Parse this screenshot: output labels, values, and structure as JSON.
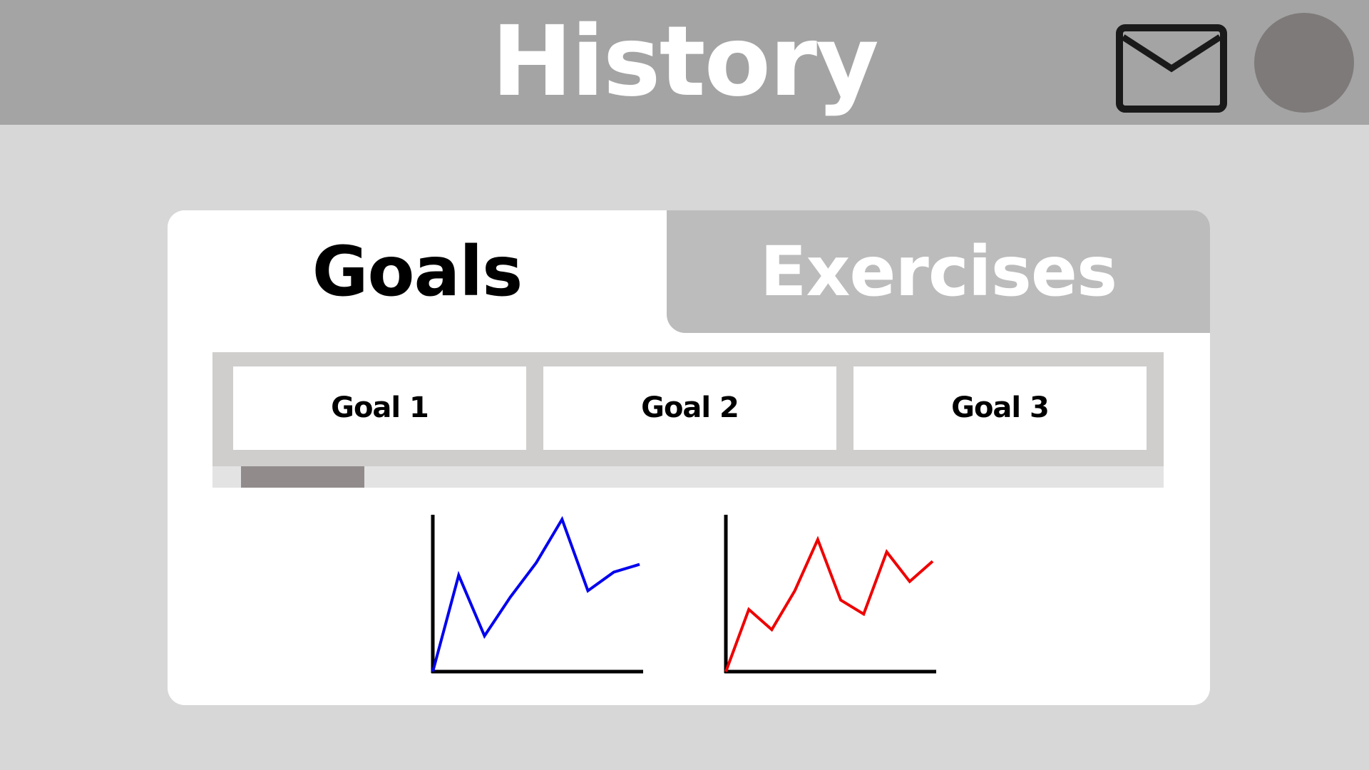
{
  "header": {
    "title": "History",
    "mail_icon": "envelope-icon",
    "avatar_color": "#7e7a79",
    "background": "#a4a4a4"
  },
  "tabs": [
    {
      "label": "Goals",
      "active": true
    },
    {
      "label": "Exercises",
      "active": false
    }
  ],
  "goals": [
    {
      "label": "Goal 1"
    },
    {
      "label": "Goal 2"
    },
    {
      "label": "Goal 3"
    }
  ],
  "scrollbar": {
    "thumb_position_fraction": 0.03,
    "thumb_size_fraction": 0.13
  },
  "chart_data": [
    {
      "type": "line",
      "color": "#0000ee",
      "x": [
        0,
        1,
        2,
        3,
        4,
        5,
        6,
        7,
        8
      ],
      "values": [
        0,
        62,
        23,
        48,
        70,
        98,
        52,
        64,
        69
      ],
      "ylim": [
        0,
        100
      ],
      "grid": false,
      "axis_ticks": false
    },
    {
      "type": "line",
      "color": "#ee0000",
      "x": [
        0,
        1,
        2,
        3,
        4,
        5,
        6,
        7,
        8,
        9
      ],
      "values": [
        0,
        40,
        27,
        52,
        85,
        46,
        37,
        77,
        58,
        71
      ],
      "ylim": [
        0,
        100
      ],
      "grid": false,
      "axis_ticks": false
    }
  ]
}
